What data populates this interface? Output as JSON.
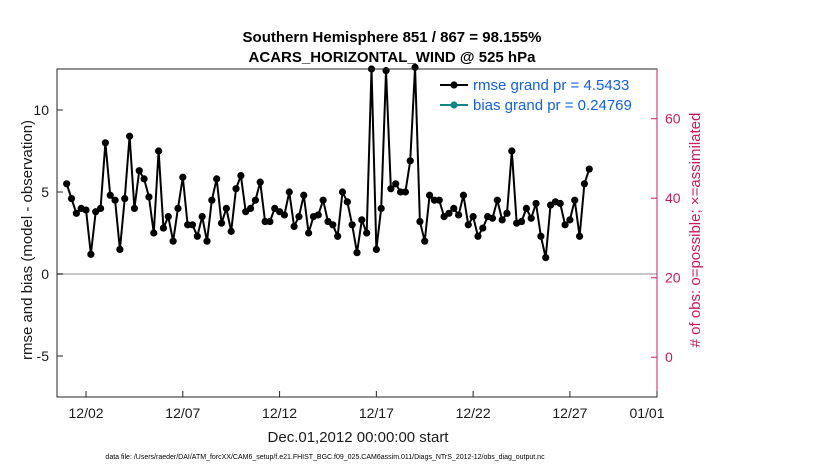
{
  "chart_data": {
    "type": "line",
    "title": "Southern Hemisphere 851 / 867 = 98.155%",
    "subtitle": "ACARS_HORIZONTAL_WIND @ 525 hPa",
    "xlabel": "Dec.01,2012 00:00:00 start",
    "ylabel": "rmse and bias (model - observation)",
    "y2label": "# of obs: o=possible; ×=assimilated",
    "footnote": "data file: /Users/raeder/DAI/ATM_forcXX/CAM6_setup/f.e21.FHIST_BGC.f09_025.CAM6assim.011/Diags_NTrS_2012-12/obs_diag_output.nc",
    "xlim": [
      0.5,
      31.5
    ],
    "ylim": [
      -7.5,
      12.5
    ],
    "y2lim": [
      -10,
      72.5
    ],
    "xticks": [
      {
        "value": 2,
        "label": "12/02"
      },
      {
        "value": 7,
        "label": "12/07"
      },
      {
        "value": 12,
        "label": "12/12"
      },
      {
        "value": 17,
        "label": "12/17"
      },
      {
        "value": 22,
        "label": "12/22"
      },
      {
        "value": 27,
        "label": "12/27"
      },
      {
        "value": 32,
        "label": "01/01"
      }
    ],
    "yticks": [
      -5,
      0,
      5,
      10
    ],
    "y2ticks": [
      0,
      20,
      40,
      60
    ],
    "zero_line": 0,
    "legend_position": "top-right",
    "colors": {
      "rmse": "#000000",
      "bias": "#138585",
      "obs": "#d41d63",
      "zero": "#c6c6c6",
      "legend_text": "#1560e0"
    },
    "series": [
      {
        "name": "rmse grand pr = 4.5433",
        "marker": "filled-circle",
        "values": [
          5.5,
          4.6,
          3.7,
          4.0,
          3.9,
          1.2,
          3.8,
          4.0,
          8.0,
          4.8,
          4.5,
          1.5,
          4.6,
          8.4,
          4.0,
          6.3,
          5.8,
          4.7,
          2.5,
          7.5,
          2.8,
          3.5,
          2.0,
          4.0,
          5.9,
          3.0,
          3.0,
          2.3,
          3.5,
          2.0,
          4.5,
          5.8,
          3.1,
          4.0,
          2.6,
          5.2,
          6.0,
          3.8,
          4.0,
          4.5,
          5.6,
          3.2,
          3.2,
          4.0,
          3.8,
          3.6,
          5.0,
          2.9,
          3.5,
          4.8,
          2.5,
          3.5,
          3.6,
          4.5,
          3.2,
          3.0,
          2.3,
          5.0,
          4.4,
          3.0,
          1.3,
          3.3,
          2.5,
          12.5,
          1.5,
          4.0,
          12.4,
          5.2,
          5.5,
          5.0,
          5.0,
          6.9,
          12.6,
          3.2,
          2.0,
          4.8,
          4.5,
          4.5,
          3.5,
          3.7,
          4.0,
          3.6,
          4.8,
          3.0,
          3.5,
          2.3,
          2.8,
          3.5,
          3.4,
          4.5,
          3.3,
          3.7,
          7.5,
          3.1,
          3.2,
          4.0,
          3.4,
          4.3,
          2.3,
          1.0,
          4.2,
          4.4,
          4.3,
          3.0,
          3.3,
          4.5,
          2.3,
          5.5,
          6.4
        ],
        "x_start": 1.0,
        "x_step": 0.25
      },
      {
        "name": "bias grand pr = 0.24769",
        "marker": "filled-circle"
      }
    ]
  }
}
